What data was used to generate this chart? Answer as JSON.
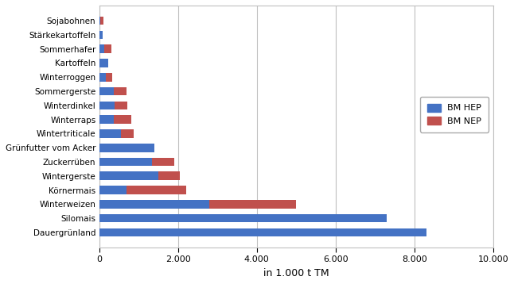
{
  "categories": [
    "Dauergrünland",
    "Silomais",
    "Winterweizen",
    "Körnermais",
    "Wintergerste",
    "Zuckerrüben",
    "Grünfutter vom Acker",
    "Wintertriticale",
    "Winterraps",
    "Winterdinkel",
    "Sommergerste",
    "Winterroggen",
    "Kartoffeln",
    "Sommerhafer",
    "Stärkekartoffeln",
    "Sojabohnen"
  ],
  "hep": [
    8300,
    7300,
    2800,
    700,
    1500,
    1350,
    1400,
    550,
    380,
    400,
    380,
    170,
    240,
    130,
    90,
    20
  ],
  "nep": [
    0,
    0,
    2200,
    1500,
    550,
    550,
    0,
    330,
    430,
    320,
    320,
    170,
    0,
    190,
    0,
    80
  ],
  "color_hep": "#4472C4",
  "color_nep": "#C0504D",
  "xlabel": "in 1.000 t TM",
  "legend_hep": "BM HEP",
  "legend_nep": "BM NEP",
  "xlim": [
    0,
    10000
  ],
  "xticks": [
    0,
    2000,
    4000,
    6000,
    8000,
    10000
  ],
  "xticklabels": [
    "0",
    "2.000",
    "4.000",
    "6.000",
    "8.000",
    "10.000"
  ],
  "background_color": "#ffffff",
  "grid_color": "#bfbfbf"
}
